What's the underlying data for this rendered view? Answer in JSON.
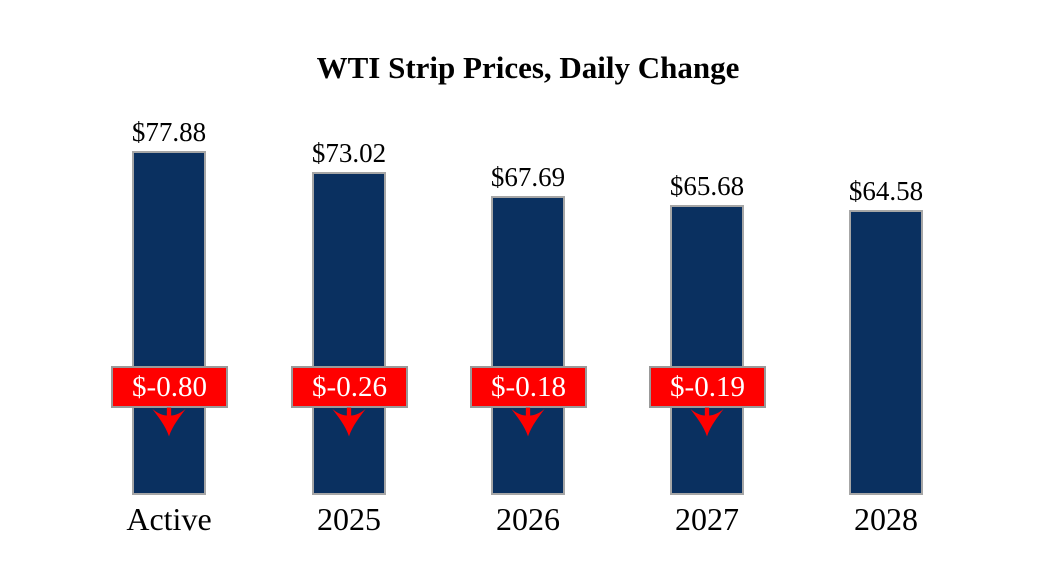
{
  "chart_data": {
    "type": "bar",
    "title": "WTI Strip Prices, Daily Change",
    "categories": [
      "Active",
      "2025",
      "2026",
      "2027",
      "2028"
    ],
    "values": [
      77.88,
      73.02,
      67.69,
      65.68,
      64.58
    ],
    "value_labels": [
      "$77.88",
      "$73.02",
      "$67.69",
      "$65.68",
      "$64.58"
    ],
    "daily_change_values": [
      -0.8,
      -0.26,
      -0.18,
      -0.19,
      null
    ],
    "daily_change_labels": [
      "$-0.80",
      "$-0.26",
      "$-0.18",
      "$-0.19",
      null
    ],
    "grid": false,
    "legend": false,
    "colors": {
      "background": "#FFFFFF",
      "bar_fill": "#0A3060",
      "bar_border": "#A6A6A6",
      "change_badge_fill": "#FF0000",
      "change_badge_border": "#999999",
      "change_badge_text": "#FFFFFF",
      "arrow": "#FF0000",
      "label_text": "#000000"
    }
  }
}
